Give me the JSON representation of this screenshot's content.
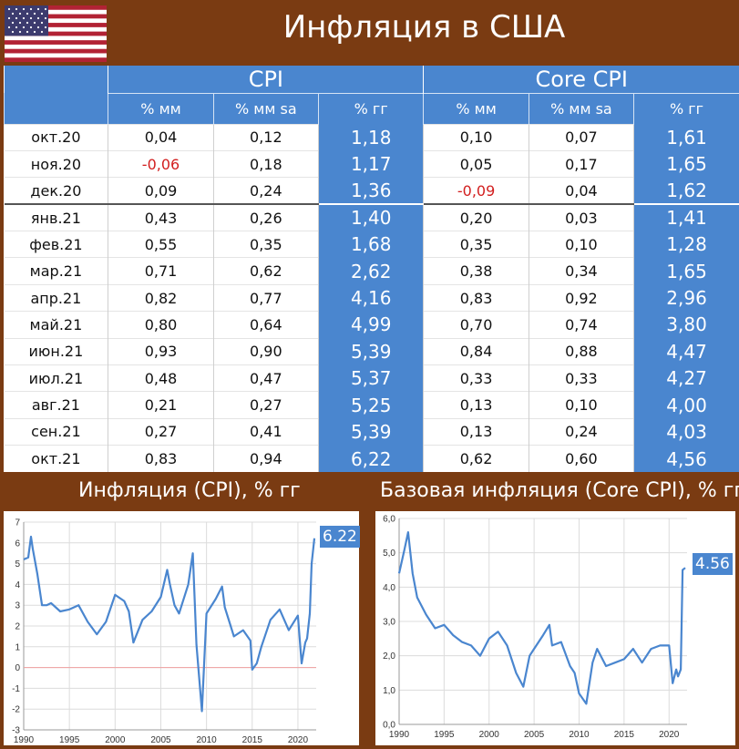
{
  "header": {
    "title": "Инфляция в США"
  },
  "colors": {
    "background": "#7a3b12",
    "accent": "#4a86cf",
    "negative": "#d21f1f",
    "zero_line": "#f0a0a0"
  },
  "table": {
    "groups": [
      "CPI",
      "Core CPI"
    ],
    "subheaders": [
      "% мм",
      "% мм sa",
      "% гг",
      "% мм",
      "% мм sa",
      "% гг"
    ],
    "rows": [
      [
        "окт.20",
        "0,04",
        "0,12",
        "1,18",
        "0,10",
        "0,07",
        "1,61"
      ],
      [
        "ноя.20",
        "-0,06",
        "0,18",
        "1,17",
        "0,05",
        "0,17",
        "1,65"
      ],
      [
        "дек.20",
        "0,09",
        "0,24",
        "1,36",
        "-0,09",
        "0,04",
        "1,62"
      ],
      [
        "янв.21",
        "0,43",
        "0,26",
        "1,40",
        "0,20",
        "0,03",
        "1,41"
      ],
      [
        "фев.21",
        "0,55",
        "0,35",
        "1,68",
        "0,35",
        "0,10",
        "1,28"
      ],
      [
        "мар.21",
        "0,71",
        "0,62",
        "2,62",
        "0,38",
        "0,34",
        "1,65"
      ],
      [
        "апр.21",
        "0,82",
        "0,77",
        "4,16",
        "0,83",
        "0,92",
        "2,96"
      ],
      [
        "май.21",
        "0,80",
        "0,64",
        "4,99",
        "0,70",
        "0,74",
        "3,80"
      ],
      [
        "июн.21",
        "0,93",
        "0,90",
        "5,39",
        "0,84",
        "0,88",
        "4,47"
      ],
      [
        "июл.21",
        "0,48",
        "0,47",
        "5,37",
        "0,33",
        "0,33",
        "4,27"
      ],
      [
        "авг.21",
        "0,21",
        "0,27",
        "5,25",
        "0,13",
        "0,10",
        "4,00"
      ],
      [
        "сен.21",
        "0,27",
        "0,41",
        "5,39",
        "0,13",
        "0,24",
        "4,03"
      ],
      [
        "окт.21",
        "0,83",
        "0,94",
        "6,22",
        "0,62",
        "0,60",
        "4,56"
      ]
    ]
  },
  "chart_data": [
    {
      "type": "line",
      "title": "Инфляция (CPI), % гг",
      "xlim": [
        1990,
        2022
      ],
      "ylim": [
        -3,
        7
      ],
      "x_ticks": [
        "1990",
        "1995",
        "2000",
        "2005",
        "2010",
        "2015",
        "2020"
      ],
      "y_ticks": [
        "-3",
        "-2",
        "-1",
        "0",
        "1",
        "2",
        "3",
        "4",
        "5",
        "6",
        "7"
      ],
      "grid": true,
      "last_value_label": "6.22",
      "x": [
        1990,
        1990.5,
        1990.8,
        1991,
        1991.5,
        1992,
        1992.5,
        1993,
        1994,
        1995,
        1996,
        1997,
        1998,
        1999,
        2000,
        2001,
        2001.5,
        2002,
        2003,
        2004,
        2005,
        2005.7,
        2006,
        2006.5,
        2007,
        2008,
        2008.5,
        2008.9,
        2009.2,
        2009.5,
        2010,
        2011,
        2011.7,
        2012,
        2013,
        2014,
        2014.8,
        2015,
        2015.5,
        2016,
        2017,
        2018,
        2019,
        2020,
        2020.4,
        2020.8,
        2021,
        2021.3,
        2021.5,
        2021.8
      ],
      "values": [
        5.2,
        5.3,
        6.3,
        5.7,
        4.5,
        3.0,
        3.0,
        3.1,
        2.7,
        2.8,
        3.0,
        2.2,
        1.6,
        2.2,
        3.5,
        3.2,
        2.7,
        1.2,
        2.3,
        2.7,
        3.4,
        4.7,
        4.0,
        3.0,
        2.6,
        4.0,
        5.5,
        1.1,
        -0.5,
        -2.1,
        2.6,
        3.3,
        3.9,
        2.9,
        1.5,
        1.8,
        1.3,
        -0.1,
        0.2,
        1.0,
        2.3,
        2.8,
        1.8,
        2.5,
        0.2,
        1.2,
        1.4,
        2.6,
        5.0,
        6.22
      ]
    },
    {
      "type": "line",
      "title": "Базовая инфляция (Core CPI), % гг",
      "xlim": [
        1990,
        2022
      ],
      "ylim": [
        0,
        6
      ],
      "x_ticks": [
        "1990",
        "1995",
        "2000",
        "2005",
        "2010",
        "2015",
        "2020"
      ],
      "y_ticks": [
        "0,0",
        "1,0",
        "2,0",
        "3,0",
        "4,0",
        "5,0",
        "6,0"
      ],
      "grid": true,
      "last_value_label": "4.56",
      "x": [
        1990,
        1990.6,
        1991,
        1991.5,
        1992,
        1993,
        1994,
        1995,
        1996,
        1997,
        1998,
        1999,
        2000,
        2001,
        2002,
        2003,
        2003.8,
        2004.5,
        2005,
        2006,
        2006.7,
        2007,
        2008,
        2009,
        2009.5,
        2010,
        2010.8,
        2011.5,
        2012,
        2013,
        2014,
        2015,
        2016,
        2017,
        2018,
        2019,
        2020,
        2020.4,
        2020.8,
        2021,
        2021.3,
        2021.5,
        2021.8
      ],
      "values": [
        4.4,
        5.1,
        5.6,
        4.4,
        3.7,
        3.2,
        2.8,
        2.9,
        2.6,
        2.4,
        2.3,
        2.0,
        2.5,
        2.7,
        2.3,
        1.5,
        1.1,
        2.0,
        2.2,
        2.6,
        2.9,
        2.3,
        2.4,
        1.7,
        1.5,
        0.9,
        0.6,
        1.8,
        2.2,
        1.7,
        1.8,
        1.9,
        2.2,
        1.8,
        2.2,
        2.3,
        2.3,
        1.2,
        1.6,
        1.4,
        1.6,
        4.5,
        4.56
      ]
    }
  ]
}
